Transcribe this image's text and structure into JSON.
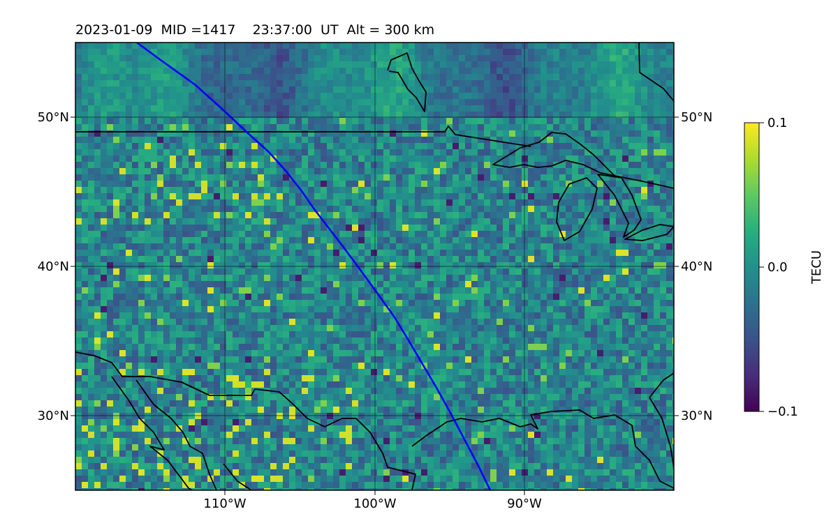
{
  "figure": {
    "title": "2023-01-09  MID =1417    23:37:00  UT  Alt = 300 km"
  },
  "map": {
    "lon_range": [
      -120,
      -80
    ],
    "lat_range": [
      25,
      55
    ],
    "lon_gridlines": [
      -110,
      -100,
      -90
    ],
    "lat_gridlines": [
      30,
      40,
      50
    ],
    "lon_tick_labels": [
      "110°W",
      "100°W",
      "90°W"
    ],
    "lat_tick_labels": [
      "30°N",
      "40°N",
      "50°N"
    ],
    "field": "TEC perturbation (viridis)",
    "colors": {
      "coastline": "#000000",
      "track": "#0000ff",
      "gridline": "#000000"
    }
  },
  "colorbar": {
    "label": "TECU",
    "vmin": -0.1,
    "vmax": 0.1,
    "ticks": [
      {
        "value": 0.1,
        "label": "0.1"
      },
      {
        "value": 0.0,
        "label": "0.0"
      },
      {
        "value": -0.1,
        "label": "−0.1"
      }
    ],
    "colormap": "viridis"
  }
}
